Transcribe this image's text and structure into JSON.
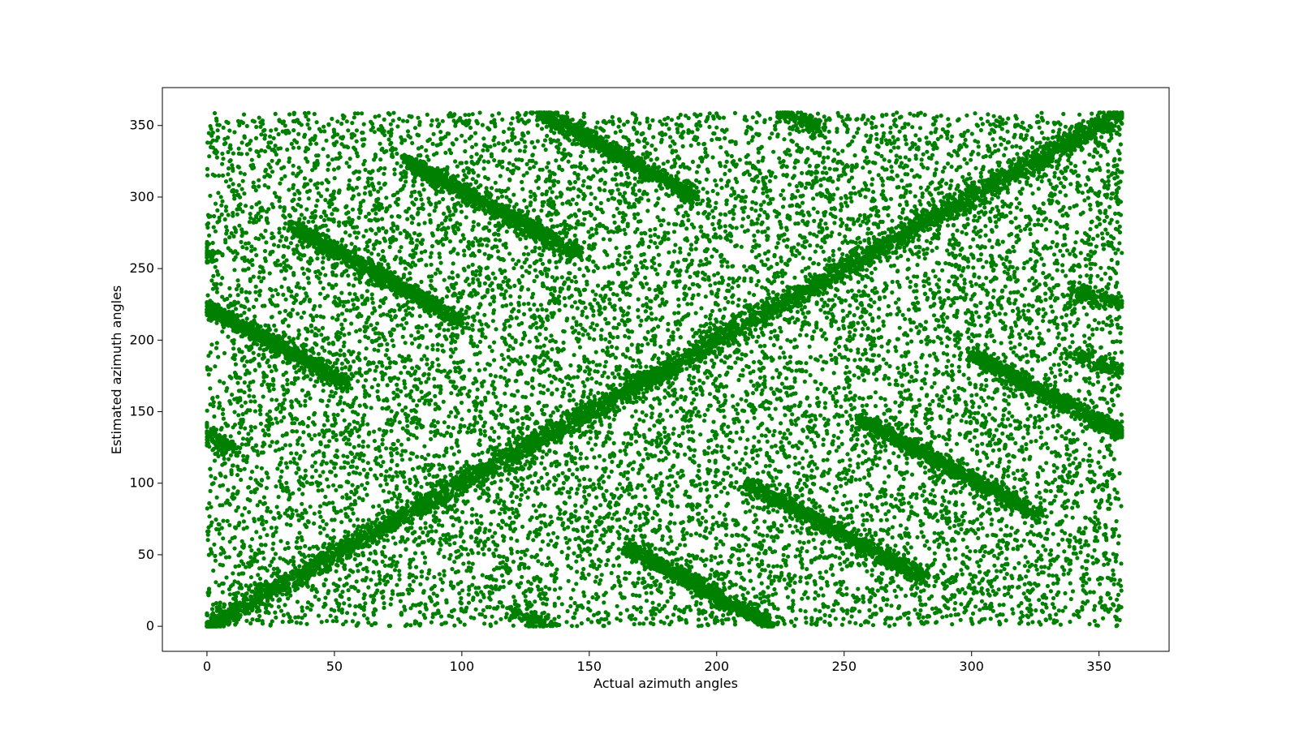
{
  "chart_data": {
    "type": "scatter",
    "title": "",
    "xlabel": "Actual azimuth angles",
    "ylabel": "Estimated azimuth angles",
    "xlim": [
      -17.5,
      377.5
    ],
    "ylim": [
      -17.5,
      376.5
    ],
    "xticks": [
      0,
      50,
      100,
      150,
      200,
      250,
      300,
      350
    ],
    "yticks": [
      0,
      50,
      100,
      150,
      200,
      250,
      300,
      350
    ],
    "grid": false,
    "legend": "none",
    "marker_color": "#008000",
    "series": [
      {
        "color": "#008000",
        "components": {
          "main_diagonal": {
            "from": [
              0,
              0
            ],
            "to": [
              359,
              359
            ],
            "count": 4200,
            "spread": 4
          },
          "bands": [
            {
              "from": [
                0,
                222
              ],
              "to": [
                55,
                170
              ],
              "count": 900,
              "spread": 3
            },
            {
              "from": [
                33,
                280
              ],
              "to": [
                100,
                213
              ],
              "count": 1000,
              "spread": 3
            },
            {
              "from": [
                78,
                325
              ],
              "to": [
                146,
                260
              ],
              "count": 1000,
              "spread": 3
            },
            {
              "from": [
                130,
                360
              ],
              "to": [
                192,
                300
              ],
              "count": 900,
              "spread": 3
            },
            {
              "from": [
                165,
                55
              ],
              "to": [
                222,
                0
              ],
              "count": 850,
              "spread": 3
            },
            {
              "from": [
                212,
                100
              ],
              "to": [
                283,
                32
              ],
              "count": 950,
              "spread": 3
            },
            {
              "from": [
                256,
                145
              ],
              "to": [
                326,
                78
              ],
              "count": 950,
              "spread": 3
            },
            {
              "from": [
                300,
                190
              ],
              "to": [
                359,
                135
              ],
              "count": 850,
              "spread": 3
            },
            {
              "from": [
                0,
                260
              ],
              "to": [
                3,
                257
              ],
              "count": 40,
              "spread": 3
            },
            {
              "from": [
                0,
                135
              ],
              "to": [
                12,
                122
              ],
              "count": 120,
              "spread": 3
            },
            {
              "from": [
                340,
                235
              ],
              "to": [
                359,
                225
              ],
              "count": 150,
              "spread": 3
            },
            {
              "from": [
                340,
                190
              ],
              "to": [
                359,
                178
              ],
              "count": 120,
              "spread": 3
            },
            {
              "from": [
                225,
                360
              ],
              "to": [
                240,
                348
              ],
              "count": 120,
              "spread": 3
            },
            {
              "from": [
                120,
                10
              ],
              "to": [
                135,
                0
              ],
              "count": 110,
              "spread": 3
            }
          ],
          "uniform_background": {
            "x_range": [
              0,
              359
            ],
            "y_range": [
              0,
              359
            ],
            "count": 13000
          }
        }
      }
    ]
  }
}
